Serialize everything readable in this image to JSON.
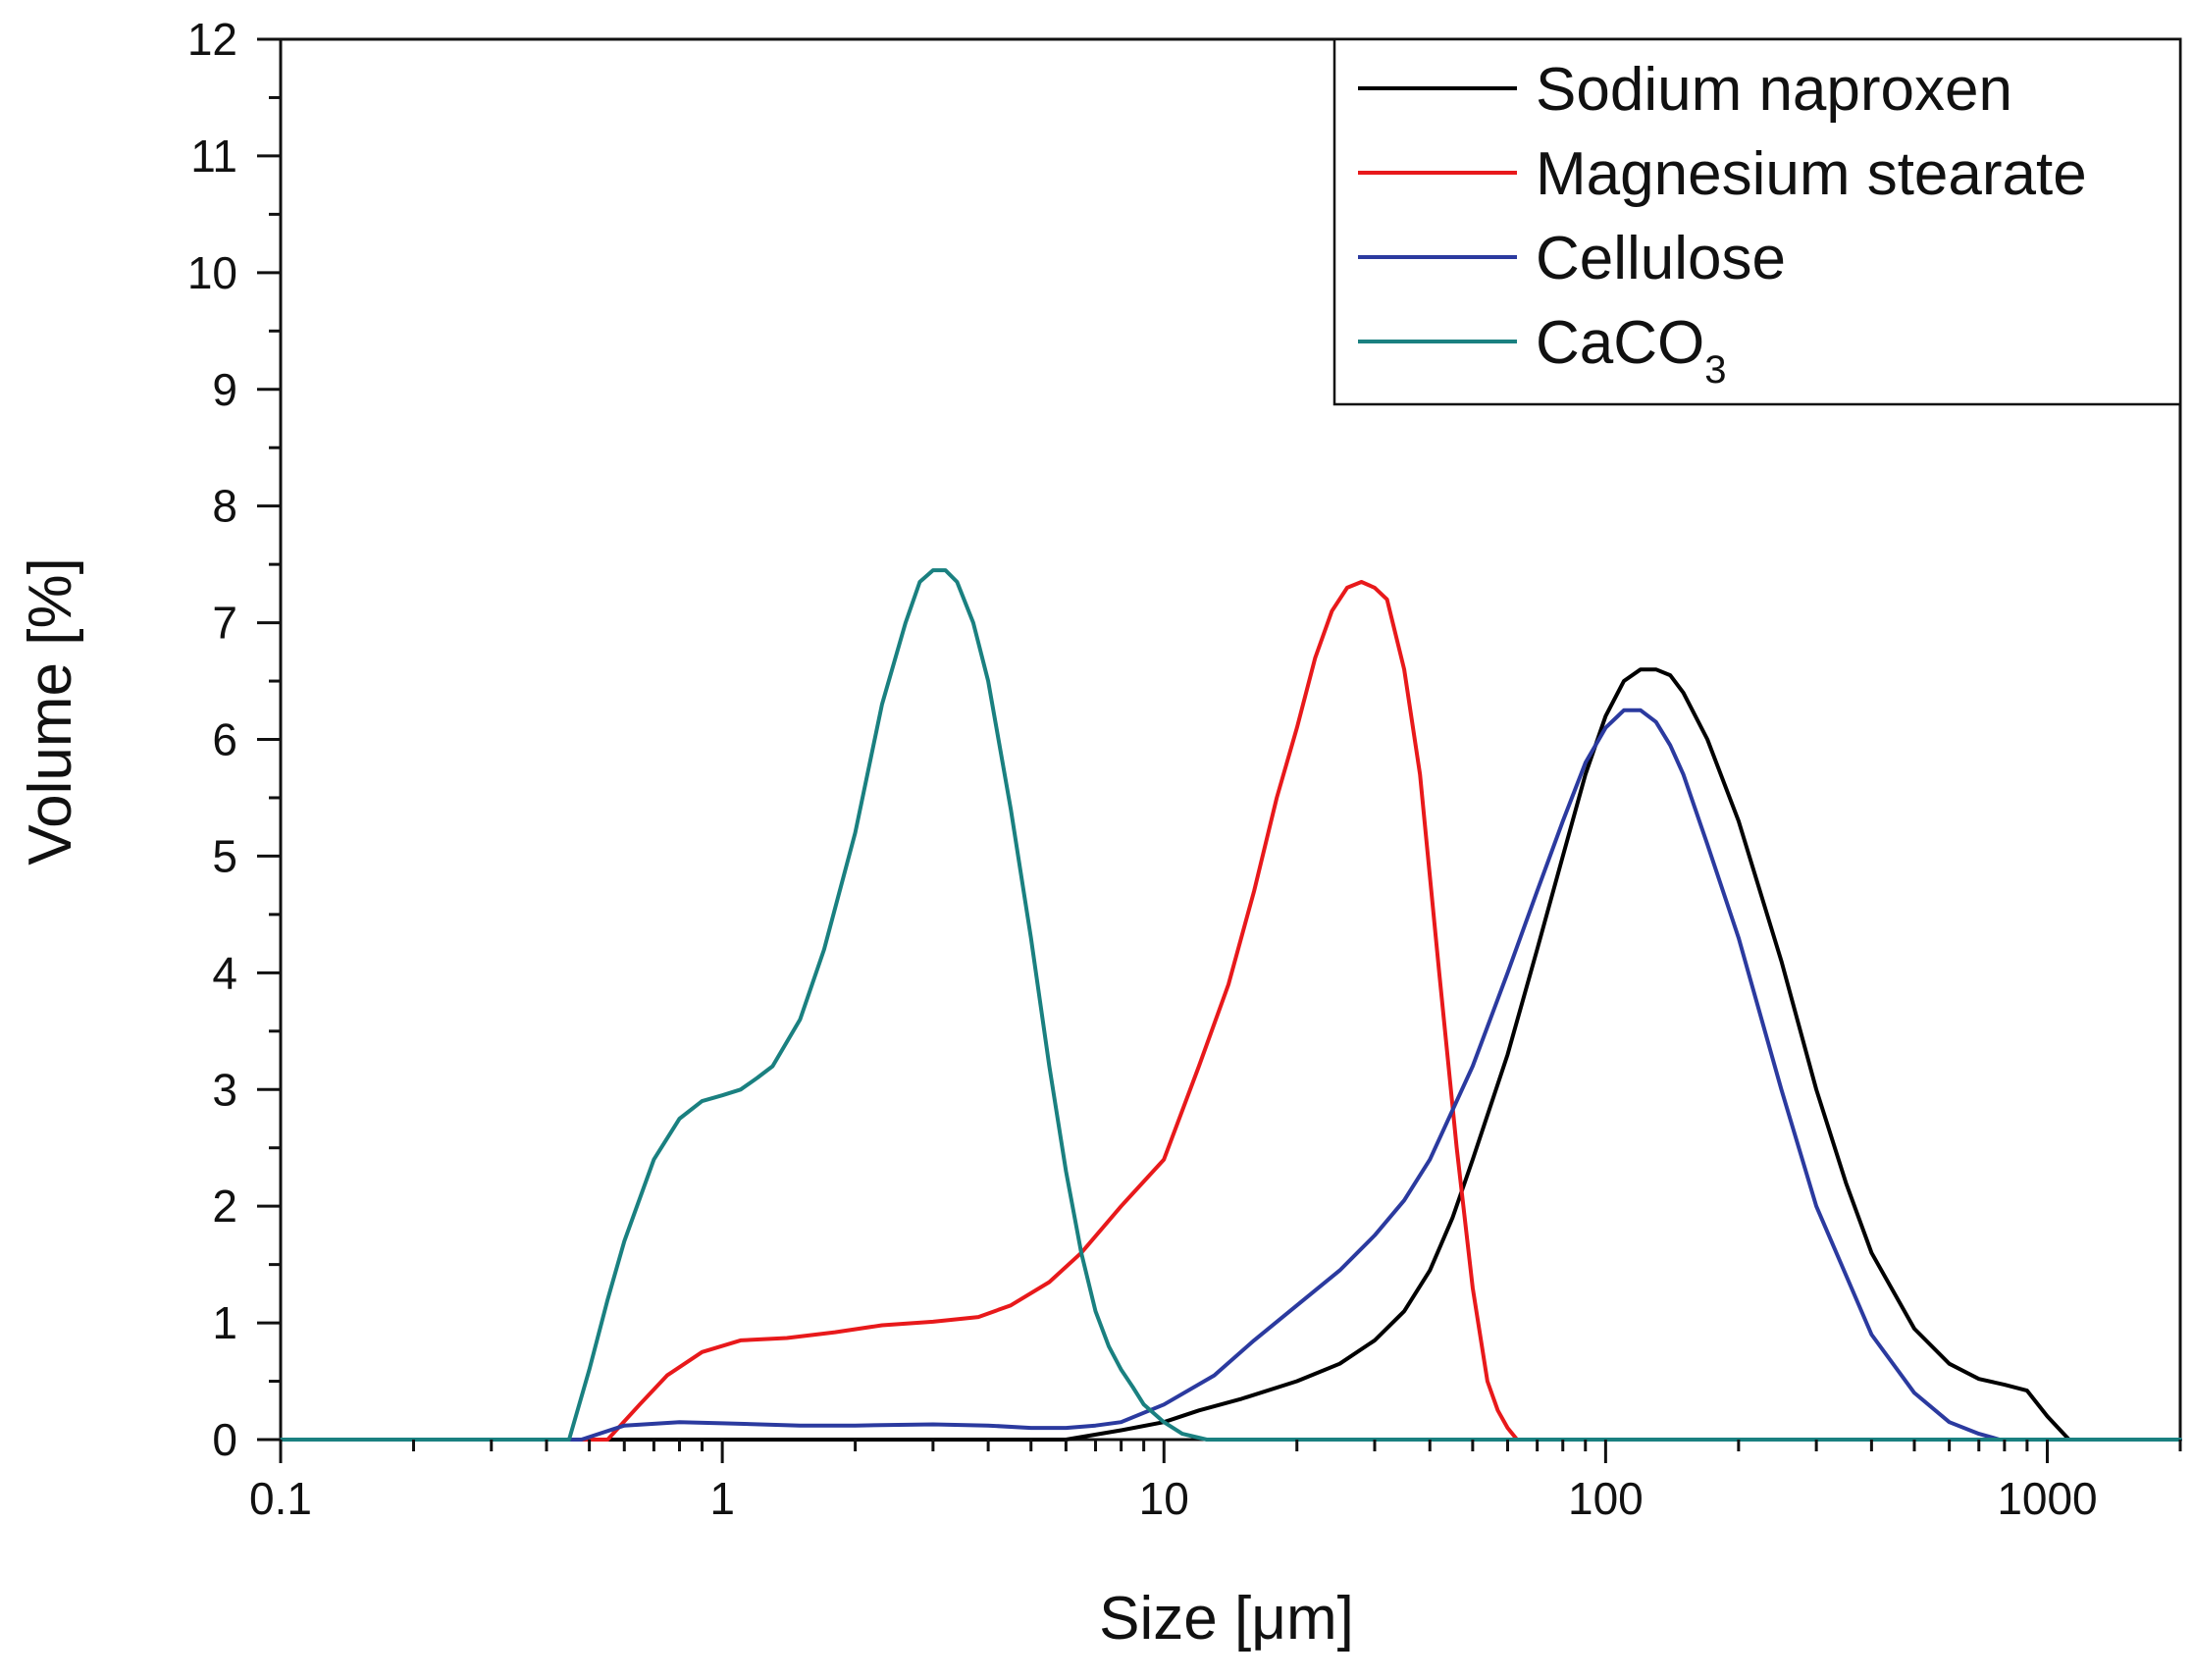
{
  "chart_data": {
    "type": "line",
    "title": "",
    "xlabel": "Size [μm]",
    "ylabel": "Volume [%]",
    "xscale": "log",
    "xlim": [
      0.1,
      2000
    ],
    "ylim": [
      0,
      12
    ],
    "x_ticks": [
      {
        "value": 0.1,
        "label": "0.1"
      },
      {
        "value": 1,
        "label": "1"
      },
      {
        "value": 10,
        "label": "10"
      },
      {
        "value": 100,
        "label": "100"
      },
      {
        "value": 1000,
        "label": "1000"
      }
    ],
    "y_ticks": [
      {
        "value": 0,
        "label": "0"
      },
      {
        "value": 1,
        "label": "1"
      },
      {
        "value": 2,
        "label": "2"
      },
      {
        "value": 3,
        "label": "3"
      },
      {
        "value": 4,
        "label": "4"
      },
      {
        "value": 5,
        "label": "5"
      },
      {
        "value": 6,
        "label": "6"
      },
      {
        "value": 7,
        "label": "7"
      },
      {
        "value": 8,
        "label": "8"
      },
      {
        "value": 9,
        "label": "9"
      },
      {
        "value": 10,
        "label": "10"
      },
      {
        "value": 11,
        "label": "11"
      },
      {
        "value": 12,
        "label": "12"
      }
    ],
    "legend": {
      "position": "top-right",
      "entries": [
        {
          "label": "Sodium naproxen",
          "color": "#000000"
        },
        {
          "label": "Magnesium stearate",
          "color": "#e8191b"
        },
        {
          "label": "Cellulose",
          "color": "#2b3a9f"
        },
        {
          "label": "CaCO",
          "subscript": "3",
          "color": "#1a8080"
        }
      ]
    },
    "series": [
      {
        "name": "Sodium naproxen",
        "color": "#000000",
        "x": [
          0.1,
          6.0,
          8.0,
          10.0,
          12.0,
          15.0,
          20.0,
          25.0,
          30.0,
          35.0,
          40.0,
          45.0,
          50.0,
          60.0,
          70.0,
          80.0,
          90.0,
          100.0,
          110.0,
          120.0,
          130.0,
          140.0,
          150.0,
          170.0,
          200.0,
          250.0,
          300.0,
          350.0,
          400.0,
          500.0,
          600.0,
          700.0,
          800.0,
          900.0,
          1000.0,
          1120.0,
          2000.0
        ],
        "y": [
          0,
          0,
          0.08,
          0.15,
          0.25,
          0.35,
          0.5,
          0.65,
          0.85,
          1.1,
          1.45,
          1.9,
          2.4,
          3.3,
          4.2,
          5.0,
          5.7,
          6.2,
          6.5,
          6.6,
          6.6,
          6.55,
          6.4,
          6.0,
          5.3,
          4.1,
          3.0,
          2.2,
          1.6,
          0.95,
          0.65,
          0.52,
          0.47,
          0.42,
          0.2,
          0,
          0
        ]
      },
      {
        "name": "Magnesium stearate",
        "color": "#e8191b",
        "x": [
          0.1,
          0.55,
          0.65,
          0.75,
          0.9,
          1.1,
          1.4,
          1.8,
          2.3,
          3.0,
          3.8,
          4.5,
          5.5,
          6.5,
          8.0,
          10.0,
          12.0,
          14.0,
          16.0,
          18.0,
          20.0,
          22.0,
          24.0,
          26.0,
          28.0,
          30.0,
          32.0,
          35.0,
          38.0,
          42.0,
          46.0,
          50.0,
          54.0,
          57.0,
          60.0,
          63.0,
          2000.0
        ],
        "y": [
          0,
          0,
          0.3,
          0.55,
          0.75,
          0.85,
          0.87,
          0.92,
          0.98,
          1.01,
          1.05,
          1.15,
          1.35,
          1.6,
          2.0,
          2.4,
          3.2,
          3.9,
          4.7,
          5.5,
          6.1,
          6.7,
          7.1,
          7.3,
          7.35,
          7.3,
          7.2,
          6.6,
          5.7,
          4.0,
          2.5,
          1.3,
          0.5,
          0.25,
          0.1,
          0,
          0
        ]
      },
      {
        "name": "Cellulose",
        "color": "#2b3a9f",
        "x": [
          0.1,
          0.48,
          0.6,
          0.8,
          1.0,
          1.5,
          2.0,
          3.0,
          4.0,
          5.0,
          6.0,
          7.0,
          8.0,
          10.0,
          13.0,
          16.0,
          20.0,
          25.0,
          30.0,
          35.0,
          40.0,
          50.0,
          60.0,
          70.0,
          80.0,
          90.0,
          100.0,
          110.0,
          120.0,
          130.0,
          140.0,
          150.0,
          170.0,
          200.0,
          250.0,
          300.0,
          400.0,
          500.0,
          600.0,
          700.0,
          780.0,
          2000.0
        ],
        "y": [
          0,
          0,
          0.12,
          0.15,
          0.14,
          0.12,
          0.12,
          0.13,
          0.12,
          0.1,
          0.1,
          0.12,
          0.15,
          0.3,
          0.55,
          0.85,
          1.15,
          1.45,
          1.75,
          2.05,
          2.4,
          3.2,
          4.0,
          4.7,
          5.3,
          5.8,
          6.1,
          6.25,
          6.25,
          6.15,
          5.95,
          5.7,
          5.1,
          4.3,
          3.0,
          2.0,
          0.9,
          0.4,
          0.15,
          0.05,
          0,
          0
        ]
      },
      {
        "name": "CaCO3",
        "color": "#1a8080",
        "x": [
          0.1,
          0.45,
          0.5,
          0.55,
          0.6,
          0.7,
          0.8,
          0.9,
          1.0,
          1.1,
          1.2,
          1.3,
          1.5,
          1.7,
          2.0,
          2.3,
          2.6,
          2.8,
          3.0,
          3.2,
          3.4,
          3.7,
          4.0,
          4.5,
          5.0,
          5.5,
          6.0,
          6.5,
          7.0,
          7.5,
          8.0,
          8.5,
          9.0,
          10.0,
          11.0,
          12.5,
          2000.0
        ],
        "y": [
          0,
          0,
          0.6,
          1.2,
          1.7,
          2.4,
          2.75,
          2.9,
          2.95,
          3.0,
          3.1,
          3.2,
          3.6,
          4.2,
          5.2,
          6.3,
          7.0,
          7.35,
          7.45,
          7.45,
          7.35,
          7.0,
          6.5,
          5.4,
          4.3,
          3.2,
          2.3,
          1.6,
          1.1,
          0.8,
          0.6,
          0.45,
          0.3,
          0.15,
          0.05,
          0,
          0
        ]
      }
    ]
  }
}
